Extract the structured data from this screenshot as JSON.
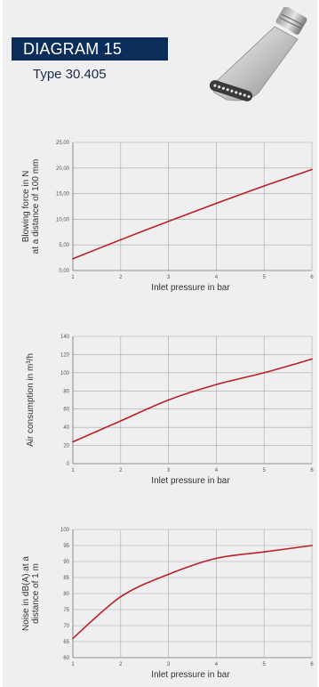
{
  "header": {
    "title": "DIAGRAM 15",
    "subtitle": "Type 30.405"
  },
  "colors": {
    "title_bg": "#0c2c5a",
    "line": "#b8202c",
    "background": "#efefef"
  },
  "icons": {
    "product": "flat-air-nozzle-image"
  },
  "chart_data": [
    {
      "type": "line",
      "xlabel": "Inlet pressure in bar",
      "ylabel": [
        "Blowing force in N",
        "at a distance of 100 mm"
      ],
      "x": [
        1,
        2,
        3,
        4,
        5,
        6
      ],
      "xlim": [
        1,
        6
      ],
      "ylim": [
        0,
        25
      ],
      "y_ticks": [
        "0,00",
        "5,00",
        "10,00",
        "15,00",
        "20,00",
        "25,00"
      ],
      "x_ticks": [
        "1",
        "2",
        "3",
        "4",
        "5",
        "6"
      ],
      "grid": true,
      "series": [
        {
          "values": [
            2.3,
            6.0,
            9.6,
            13.1,
            16.5,
            19.7
          ]
        }
      ]
    },
    {
      "type": "line",
      "xlabel": "Inlet pressure in bar",
      "ylabel": [
        "Air consumption in m³/h"
      ],
      "x": [
        1,
        2,
        3,
        4,
        5,
        6
      ],
      "xlim": [
        1,
        6
      ],
      "ylim": [
        0,
        140
      ],
      "y_ticks": [
        "0",
        "20",
        "40",
        "60",
        "80",
        "100",
        "120",
        "140"
      ],
      "x_ticks": [
        "1",
        "2",
        "3",
        "4",
        "5",
        "6"
      ],
      "grid": true,
      "series": [
        {
          "values": [
            24,
            47,
            70,
            87,
            100,
            115
          ]
        }
      ]
    },
    {
      "type": "line",
      "xlabel": "Inlet pressure in bar",
      "ylabel": [
        "Noise in dB(A) at a",
        "distance of 1 m"
      ],
      "x": [
        1,
        2,
        3,
        4,
        5,
        6
      ],
      "xlim": [
        1,
        6
      ],
      "ylim": [
        60,
        100
      ],
      "y_ticks": [
        "60",
        "65",
        "70",
        "75",
        "80",
        "85",
        "90",
        "95",
        "100"
      ],
      "x_ticks": [
        "1",
        "2",
        "3",
        "4",
        "5",
        "6"
      ],
      "grid": true,
      "series": [
        {
          "values": [
            66,
            79,
            86,
            91,
            93,
            95
          ]
        }
      ]
    }
  ]
}
